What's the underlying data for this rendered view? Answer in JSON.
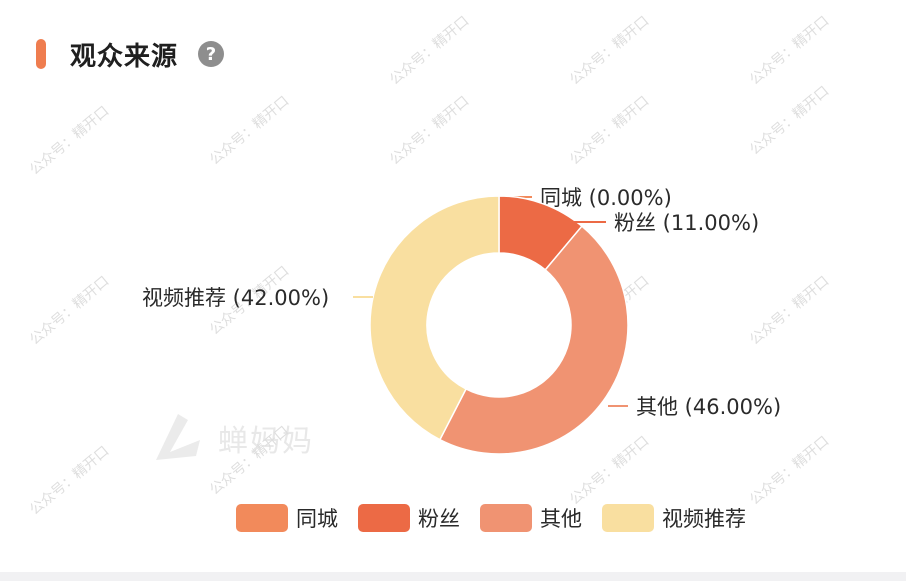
{
  "header": {
    "title": "观众来源",
    "help_icon_char": "?",
    "accent_color": "#ef7d4f"
  },
  "watermark": {
    "logo_text": "蝉妈妈",
    "repeat_text": "公众号：精开口"
  },
  "chart_data": {
    "type": "pie",
    "donut": true,
    "title": "观众来源",
    "slices": [
      {
        "name": "同城",
        "value": 0.0,
        "label": "同城 (0.00%)",
        "color": "#f28a5b"
      },
      {
        "name": "粉丝",
        "value": 11.0,
        "label": "粉丝 (11.00%)",
        "color": "#ec6a45"
      },
      {
        "name": "其他",
        "value": 46.0,
        "label": "其他 (46.00%)",
        "color": "#f09372"
      },
      {
        "name": "视频推荐",
        "value": 42.0,
        "label": "视频推荐 (42.00%)",
        "color": "#f9dfa0"
      }
    ],
    "legend_position": "bottom"
  }
}
